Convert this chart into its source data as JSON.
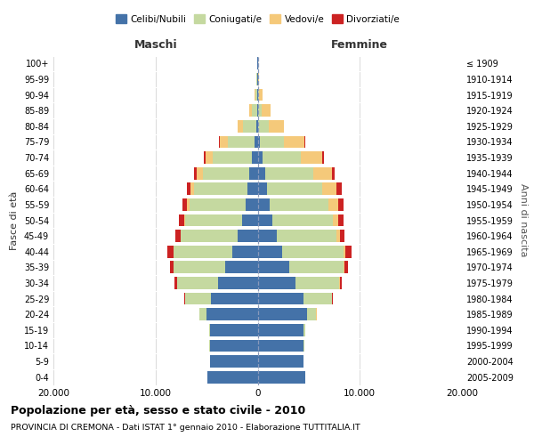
{
  "age_groups": [
    "0-4",
    "5-9",
    "10-14",
    "15-19",
    "20-24",
    "25-29",
    "30-34",
    "35-39",
    "40-44",
    "45-49",
    "50-54",
    "55-59",
    "60-64",
    "65-69",
    "70-74",
    "75-79",
    "80-84",
    "85-89",
    "90-94",
    "95-99",
    "100+"
  ],
  "birth_years": [
    "2005-2009",
    "2000-2004",
    "1995-1999",
    "1990-1994",
    "1985-1989",
    "1980-1984",
    "1975-1979",
    "1970-1974",
    "1965-1969",
    "1960-1964",
    "1955-1959",
    "1950-1954",
    "1945-1949",
    "1940-1944",
    "1935-1939",
    "1930-1934",
    "1925-1929",
    "1920-1924",
    "1915-1919",
    "1910-1914",
    "≤ 1909"
  ],
  "males": {
    "celibi": [
      4900,
      4650,
      4700,
      4650,
      5000,
      4600,
      3900,
      3200,
      2500,
      2000,
      1500,
      1200,
      1000,
      800,
      600,
      300,
      100,
      80,
      50,
      30,
      20
    ],
    "coniugati": [
      5,
      20,
      50,
      100,
      700,
      2500,
      4000,
      5000,
      5700,
      5500,
      5600,
      5500,
      5200,
      4600,
      3800,
      2600,
      1300,
      500,
      150,
      60,
      20
    ],
    "vedovi": [
      0,
      0,
      0,
      0,
      5,
      10,
      20,
      40,
      60,
      80,
      120,
      200,
      350,
      550,
      700,
      800,
      550,
      280,
      70,
      15,
      5
    ],
    "divorziati": [
      0,
      0,
      0,
      0,
      20,
      80,
      220,
      380,
      560,
      460,
      460,
      460,
      420,
      280,
      180,
      70,
      25,
      10,
      5,
      2,
      1
    ]
  },
  "females": {
    "nubili": [
      4700,
      4450,
      4500,
      4500,
      4850,
      4500,
      3700,
      3100,
      2400,
      1900,
      1450,
      1150,
      950,
      750,
      500,
      260,
      80,
      60,
      30,
      15,
      10
    ],
    "coniugate": [
      5,
      20,
      50,
      150,
      900,
      2800,
      4300,
      5300,
      6000,
      5800,
      5900,
      5800,
      5400,
      4700,
      3700,
      2300,
      1000,
      350,
      100,
      30,
      10
    ],
    "vedove": [
      0,
      0,
      0,
      0,
      5,
      15,
      40,
      80,
      180,
      320,
      560,
      900,
      1400,
      1800,
      2100,
      2000,
      1450,
      850,
      380,
      120,
      40
    ],
    "divorziate": [
      0,
      0,
      0,
      0,
      20,
      80,
      230,
      400,
      580,
      520,
      520,
      520,
      460,
      300,
      180,
      70,
      25,
      10,
      5,
      2,
      1
    ]
  },
  "colors": {
    "celibi": "#4472A8",
    "coniugati": "#C5D9A0",
    "vedovi": "#F5C97A",
    "divorziati": "#CC2222"
  },
  "title": "Popolazione per età, sesso e stato civile - 2010",
  "subtitle": "PROVINCIA DI CREMONA - Dati ISTAT 1° gennaio 2010 - Elaborazione TUTTITALIA.IT",
  "xlabel_left": "Maschi",
  "xlabel_right": "Femmine",
  "ylabel_left": "Fasce di età",
  "ylabel_right": "Anni di nascita",
  "xlim": 20000,
  "bg_color": "#ffffff",
  "grid_color": "#cccccc"
}
